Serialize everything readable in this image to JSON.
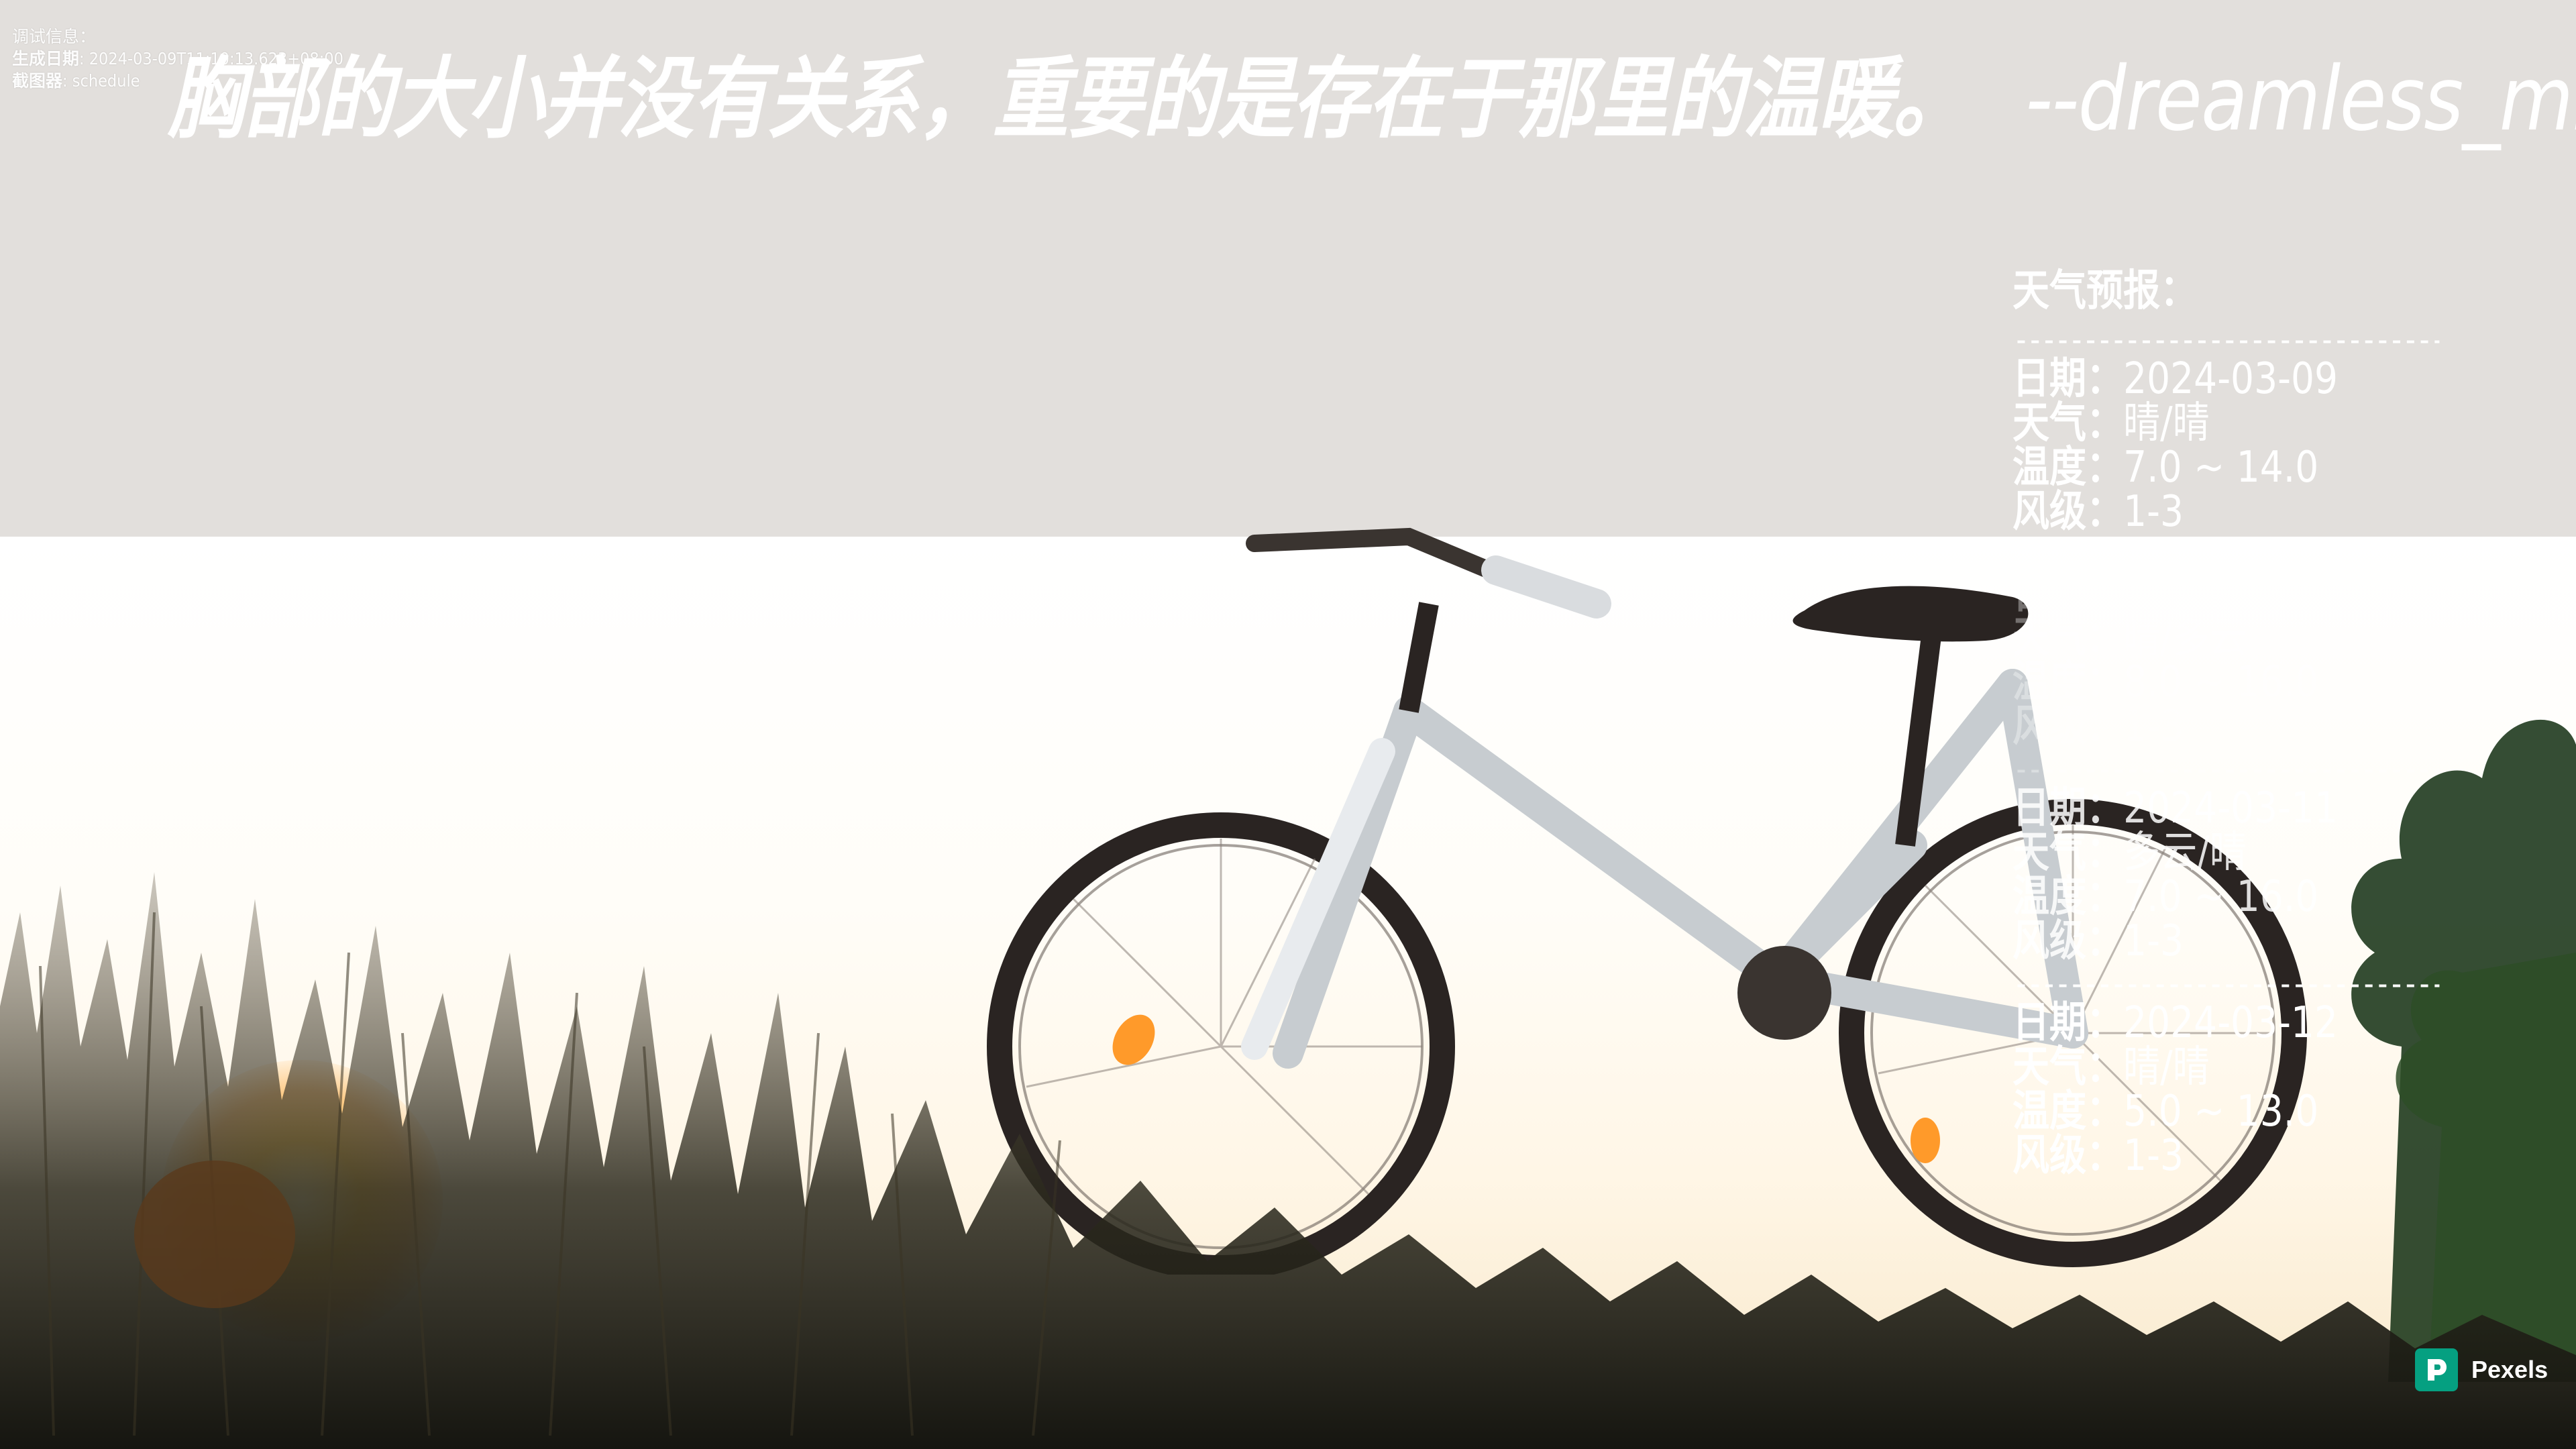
{
  "debug": {
    "title": "调试信息：",
    "generated_label": "生成日期",
    "generated_value": "2024-03-09T11:10:13.623+08:00",
    "browser_label": "截图器",
    "browser_value": "schedule"
  },
  "quote": {
    "text": "胸部的大小并没有关系，重要的是存在于那里的温暖。",
    "author": "--dreamless_milky"
  },
  "weather": {
    "title": "天气预报：",
    "divider": "--------------------------------",
    "labels": {
      "date": "日期：",
      "condition": "天气：",
      "temp": "温度：",
      "wind": "风级："
    },
    "days": [
      {
        "date": "2024-03-09",
        "condition": "晴/晴",
        "temp": "7.0 ~ 14.0",
        "wind": "1-3"
      },
      {
        "date": "2024-03-10",
        "condition": "晴/多云",
        "temp": "8.0 ~ 16.0",
        "wind": "1-3"
      },
      {
        "date": "2024-03-11",
        "condition": "多云/晴",
        "temp": "7.0 ~ 16.0",
        "wind": "1-3"
      },
      {
        "date": "2024-03-12",
        "condition": "晴/晴",
        "temp": "5.0 ~ 13.0",
        "wind": "1-3"
      }
    ]
  },
  "credit": {
    "icon": "pexels-logo-icon",
    "label": "Pexels",
    "color": "#05a081"
  },
  "colors": {
    "sky_top": "#e2dfdc",
    "sunlight": "#ffb94a",
    "text": "#ffffff"
  }
}
